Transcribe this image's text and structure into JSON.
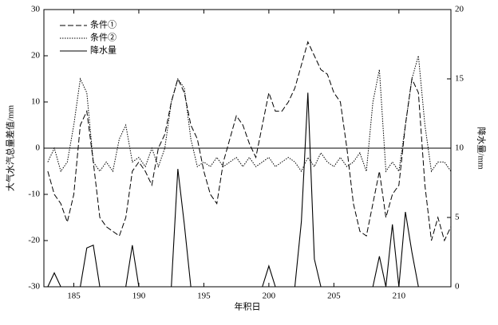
{
  "chart_data": {
    "type": "line",
    "x_label": "年积日",
    "y_label": "大气水汽总量差值/mm",
    "y2_label": "降水量/mm",
    "x": [
      183,
      183.5,
      184,
      184.5,
      185,
      185.5,
      186,
      186.5,
      187,
      187.5,
      188,
      188.5,
      189,
      189.5,
      190,
      190.5,
      191,
      191.5,
      192,
      192.5,
      193,
      193.5,
      194,
      194.5,
      195,
      195.5,
      196,
      196.5,
      197,
      197.5,
      198,
      198.5,
      199,
      199.5,
      200,
      200.5,
      201,
      201.5,
      202,
      202.5,
      203,
      203.5,
      204,
      204.5,
      205,
      205.5,
      206,
      206.5,
      207,
      207.5,
      208,
      208.5,
      209,
      209.5,
      210,
      210.5,
      211,
      211.5,
      212,
      212.5,
      213,
      213.5,
      214
    ],
    "series": [
      {
        "name": "条件①",
        "color": "#000000",
        "dash": "dashed",
        "values": [
          -5,
          -10,
          -12,
          -16,
          -10,
          5,
          8,
          -3,
          -15,
          -17,
          -18,
          -19,
          -15,
          -5,
          -3,
          -5,
          -8,
          0,
          3,
          10,
          15,
          12,
          5,
          2,
          -5,
          -10,
          -12,
          -3,
          2,
          7,
          5,
          1,
          -2,
          5,
          12,
          8,
          8,
          10,
          13,
          18,
          23,
          20,
          17,
          16,
          12,
          10,
          0,
          -12,
          -18,
          -19,
          -12,
          -5,
          -15,
          -10,
          -8,
          5,
          15,
          12,
          -8,
          -20,
          -15,
          -20,
          -17
        ]
      },
      {
        "name": "条件②",
        "color": "#000000",
        "dash": "dotted",
        "values": [
          -3,
          0,
          -5,
          -3,
          5,
          15,
          12,
          -3,
          -5,
          -3,
          -5,
          2,
          5,
          -3,
          -2,
          -4,
          0,
          -4,
          0,
          10,
          15,
          13,
          2,
          -4,
          -3,
          -4,
          -2,
          -4,
          -3,
          -2,
          -4,
          -2,
          -4,
          -3,
          -2,
          -4,
          -3,
          -2,
          -3,
          -5,
          -2,
          -4,
          -1,
          -3,
          -4,
          -2,
          -4,
          -3,
          -1,
          -5,
          10,
          17,
          -5,
          -3,
          -5,
          5,
          15,
          20,
          5,
          -5,
          -3,
          -3,
          -5
        ]
      },
      {
        "name": "降水量",
        "color": "#000000",
        "dash": "solid",
        "axis": "y2",
        "values": [
          0,
          1,
          0,
          0,
          0,
          0,
          2.8,
          3,
          0,
          0,
          0,
          0,
          0,
          3,
          0,
          0,
          0,
          0,
          0,
          0,
          8.5,
          4.5,
          0,
          0,
          0,
          0,
          0,
          0,
          0,
          0,
          0,
          0,
          0,
          0,
          1.5,
          0,
          0,
          0,
          0,
          4.7,
          14,
          2,
          0,
          0,
          0,
          0,
          0,
          0,
          0,
          0,
          0,
          2.2,
          0,
          4.5,
          0,
          5.4,
          2.5,
          0,
          0,
          0,
          0,
          0,
          0
        ]
      }
    ],
    "xlim": [
      182.7,
      214
    ],
    "xticks": [
      185,
      190,
      195,
      200,
      205,
      210
    ],
    "ylim": [
      -30,
      30
    ],
    "yticks": [
      -30,
      -20,
      -10,
      0,
      10,
      20,
      30
    ],
    "y2lim": [
      0,
      20
    ],
    "y2ticks": [
      0,
      5,
      10,
      15,
      20
    ],
    "reference_line": 0,
    "legend": "upper left"
  }
}
